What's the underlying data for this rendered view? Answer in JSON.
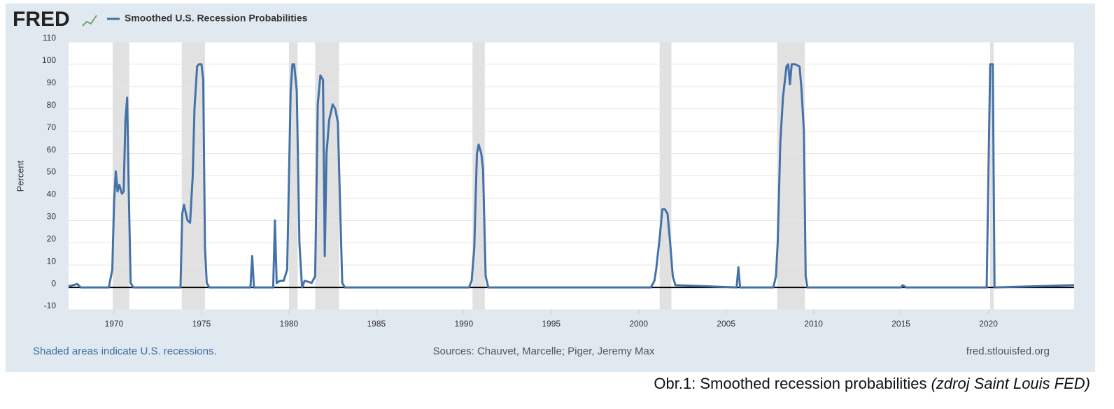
{
  "brand": "FRED",
  "chart_data": {
    "type": "line",
    "series": [
      {
        "name": "Smoothed U.S. Recession Probabilities",
        "color": "#4472a8",
        "x": [
          1967.4,
          1967.9,
          1968.1,
          1969.7,
          1969.9,
          1970.0,
          1970.1,
          1970.2,
          1970.3,
          1970.45,
          1970.55,
          1970.65,
          1970.75,
          1970.85,
          1970.95,
          1971.1,
          1973.8,
          1973.9,
          1974.0,
          1974.2,
          1974.35,
          1974.5,
          1974.6,
          1974.75,
          1974.85,
          1975.0,
          1975.1,
          1975.2,
          1975.3,
          1975.45,
          1977.8,
          1977.9,
          1978.0,
          1979.1,
          1979.2,
          1979.3,
          1979.5,
          1979.7,
          1979.9,
          1980.1,
          1980.2,
          1980.3,
          1980.45,
          1980.6,
          1980.75,
          1980.9,
          1981.3,
          1981.5,
          1981.65,
          1981.8,
          1981.95,
          1982.05,
          1982.15,
          1982.3,
          1982.5,
          1982.65,
          1982.8,
          1982.95,
          1983.05,
          1983.2,
          1990.3,
          1990.45,
          1990.6,
          1990.75,
          1990.85,
          1991.0,
          1991.1,
          1991.25,
          1991.4,
          2000.7,
          2000.9,
          2001.0,
          2001.2,
          2001.35,
          2001.5,
          2001.65,
          2001.8,
          2001.95,
          2002.1,
          2005.6,
          2005.7,
          2005.8,
          2007.7,
          2007.85,
          2007.95,
          2008.1,
          2008.25,
          2008.45,
          2008.55,
          2008.65,
          2008.75,
          2008.95,
          2009.2,
          2009.3,
          2009.45,
          2009.55,
          2009.65,
          2015.0,
          2015.1,
          2015.3,
          2019.9,
          2020.1,
          2020.25,
          2020.35,
          2024.9
        ],
        "values": [
          0.5,
          1.5,
          0,
          0,
          8,
          38,
          52,
          43,
          46,
          42,
          43,
          75,
          85,
          40,
          2,
          0,
          0,
          33,
          37,
          30,
          29,
          50,
          80,
          99,
          100,
          100,
          93,
          18,
          2,
          0,
          0,
          14,
          0,
          0,
          30,
          2,
          3,
          3,
          8,
          88,
          100,
          100,
          88,
          20,
          0,
          3,
          2,
          5,
          82,
          95,
          93,
          14,
          60,
          75,
          82,
          80,
          74,
          30,
          2,
          0,
          0,
          3,
          18,
          60,
          64,
          60,
          53,
          5,
          0,
          0,
          3,
          8,
          22,
          35,
          35,
          33,
          20,
          5,
          1,
          0,
          9,
          0,
          0,
          5,
          20,
          65,
          85,
          99,
          100,
          91,
          100,
          100,
          99,
          90,
          70,
          5,
          0,
          0,
          1,
          0,
          0,
          100,
          100,
          0,
          1
        ]
      }
    ],
    "recessions": [
      [
        1969.92,
        1970.87
      ],
      [
        1973.87,
        1975.2
      ],
      [
        1980.0,
        1980.5
      ],
      [
        1981.5,
        1982.87
      ],
      [
        1990.5,
        1991.2
      ],
      [
        2001.2,
        2001.87
      ],
      [
        2007.92,
        2009.5
      ],
      [
        2020.1,
        2020.3
      ]
    ],
    "recession_color": "#e1e1e1",
    "ylabel": "Percent",
    "xlim": [
      1967.4,
      2024.9
    ],
    "xticks": [
      1970,
      1975,
      1980,
      1985,
      1990,
      1995,
      2000,
      2005,
      2010,
      2015,
      2020
    ],
    "ylim": [
      -10,
      110
    ],
    "yticks": [
      -10,
      0,
      10,
      20,
      30,
      40,
      50,
      60,
      70,
      80,
      90,
      100,
      110
    ],
    "grid": true,
    "notes": {
      "shaded": "Shaded areas indicate U.S. recessions.",
      "sources": "Sources: Chauvet, Marcelle; Piger, Jeremy Max",
      "site": "fred.stlouisfed.org"
    }
  },
  "caption": {
    "text": "Obr.1: Smoothed recession probabilities ",
    "italic": "(zdroj Saint Louis FED)"
  }
}
